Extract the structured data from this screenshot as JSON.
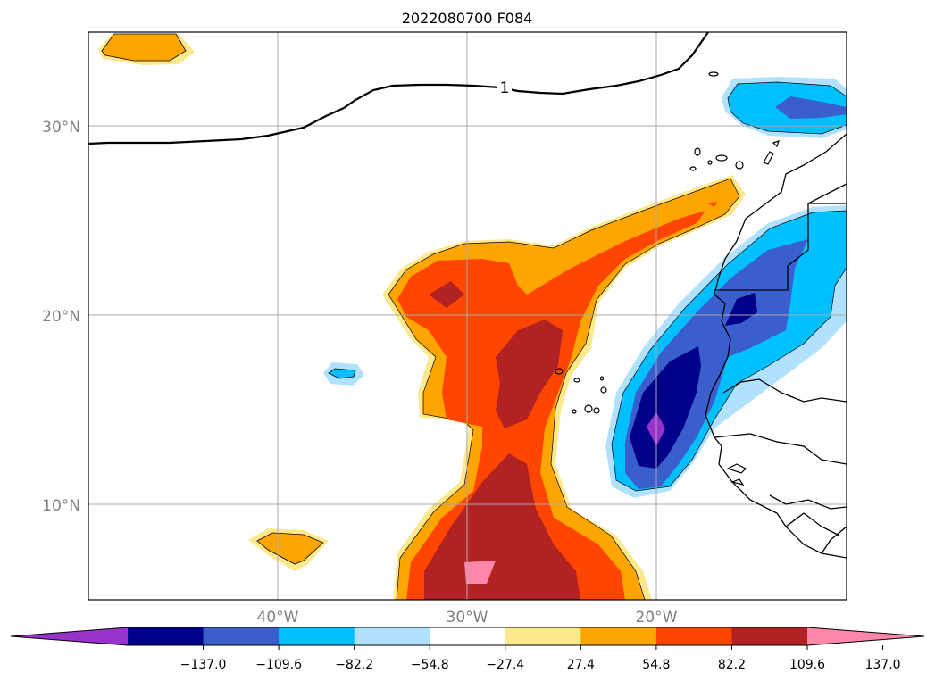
{
  "title": "2022080700 F084",
  "map": {
    "lat_labels": [
      "30°N",
      "20°N",
      "10°N"
    ],
    "lon_labels": [
      "40°W",
      "30°W",
      "20°W"
    ],
    "contour_label": "1"
  },
  "colorbar": {
    "colors": [
      "#9932cc",
      "#00008b",
      "#3a5fcd",
      "#00bfff",
      "#b0e2ff",
      "#ffffff",
      "#fde98b",
      "#ffa500",
      "#ff4500",
      "#b22222",
      "#ff88aa"
    ],
    "tick_labels": [
      "−137.0",
      "−109.6",
      "−82.2",
      "−54.8",
      "−27.4",
      "27.4",
      "54.8",
      "82.2",
      "109.6",
      "137.0"
    ]
  },
  "legend_colors": {
    "positive": [
      "#fde98b",
      "#ffa500",
      "#ff4500",
      "#b22222",
      "#ff88aa"
    ],
    "negative": [
      "#b0e2ff",
      "#00bfff",
      "#3a5fcd",
      "#00008b",
      "#9932cc"
    ]
  }
}
